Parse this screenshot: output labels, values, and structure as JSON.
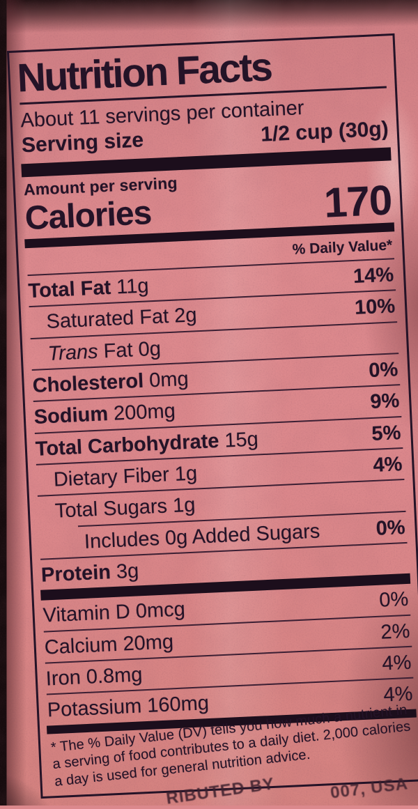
{
  "colors": {
    "bag_pink": "#db888c",
    "label_ink": "#241327",
    "hairline": "#3b1f33",
    "bag_edge_dark": "#170c0e"
  },
  "label": {
    "title": "Nutrition Facts",
    "servings_line": "About 11 servings per container",
    "serving_size_label": "Serving size",
    "serving_size_value": "1/2 cup (30g)",
    "amount_per_serving": "Amount per serving",
    "calories_label": "Calories",
    "calories_value": "170",
    "daily_value_header": "% Daily Value*",
    "nutrients": [
      {
        "name": "Total Fat",
        "amount": "11g",
        "dv": "14%",
        "bold": true,
        "indent": 0
      },
      {
        "name": "Saturated Fat",
        "amount": "2g",
        "dv": "10%",
        "bold": false,
        "indent": 1
      },
      {
        "italic": "Trans",
        "name": " Fat",
        "amount": "0g",
        "dv": "",
        "bold": false,
        "indent": 1
      },
      {
        "name": "Cholesterol",
        "amount": "0mg",
        "dv": "0%",
        "bold": true,
        "indent": 0
      },
      {
        "name": "Sodium",
        "amount": "200mg",
        "dv": "9%",
        "bold": true,
        "indent": 0
      },
      {
        "name": "Total Carbohydrate",
        "amount": "15g",
        "dv": "5%",
        "bold": true,
        "indent": 0
      },
      {
        "name": "Dietary Fiber",
        "amount": "1g",
        "dv": "4%",
        "bold": false,
        "indent": 1
      },
      {
        "name": "Total Sugars",
        "amount": "1g",
        "dv": "",
        "bold": false,
        "indent": 1
      },
      {
        "name": "Includes 0g Added Sugars",
        "amount": "",
        "dv": "0%",
        "bold": false,
        "indent": 2
      },
      {
        "name": "Protein",
        "amount": "3g",
        "dv": "",
        "bold": true,
        "indent": 0
      }
    ],
    "vitamins": [
      {
        "name": "Vitamin D",
        "amount": "0mcg",
        "dv": "0%"
      },
      {
        "name": "Calcium",
        "amount": "20mg",
        "dv": "2%"
      },
      {
        "name": "Iron",
        "amount": "0.8mg",
        "dv": "4%"
      },
      {
        "name": "Potassium",
        "amount": "160mg",
        "dv": "4%"
      }
    ],
    "footnote": "* The % Daily Value (DV) tells you how much a nutrient in a serving of food contributes to a daily diet. 2,000 calories a day is used for general nutrition advice."
  },
  "bottom_strip": {
    "left_fragment": "RIBUTED BY",
    "right_fragment": "007, USA"
  }
}
